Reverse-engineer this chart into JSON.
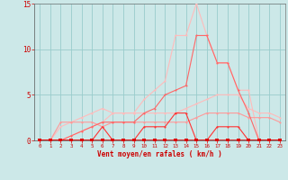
{
  "x": [
    0,
    1,
    2,
    3,
    4,
    5,
    6,
    7,
    8,
    9,
    10,
    11,
    12,
    13,
    14,
    15,
    16,
    17,
    18,
    19,
    20,
    21,
    22,
    23
  ],
  "line_rafales": [
    0,
    0,
    0,
    0.5,
    1.0,
    1.5,
    2.0,
    3.0,
    3.0,
    3.0,
    4.5,
    5.5,
    6.5,
    11.5,
    11.5,
    15.0,
    11.5,
    8.5,
    8.5,
    5.5,
    5.5,
    0,
    0,
    0
  ],
  "line_moyen": [
    0,
    0,
    0,
    0.5,
    1.0,
    1.5,
    2.0,
    2.0,
    2.0,
    2.0,
    3.0,
    3.5,
    5.0,
    5.5,
    6.0,
    11.5,
    11.5,
    8.5,
    8.5,
    5.5,
    3.0,
    0,
    0,
    0
  ],
  "line_ramp": [
    0,
    0,
    1.5,
    2.0,
    2.5,
    3.0,
    3.5,
    3.0,
    3.0,
    3.0,
    3.0,
    3.0,
    3.0,
    3.0,
    3.5,
    4.0,
    4.5,
    5.0,
    5.0,
    5.0,
    3.5,
    3.0,
    3.0,
    2.5
  ],
  "line_lower": [
    0,
    0,
    2.0,
    2.0,
    2.0,
    2.0,
    1.5,
    2.0,
    2.0,
    2.0,
    2.0,
    2.0,
    2.0,
    2.0,
    2.0,
    2.5,
    3.0,
    3.0,
    3.0,
    3.0,
    2.5,
    2.5,
    2.5,
    2.0
  ],
  "line_zero": [
    0,
    0,
    0,
    0,
    0,
    0,
    1.5,
    0,
    0,
    0,
    1.5,
    1.5,
    1.5,
    3.0,
    3.0,
    0,
    0,
    1.5,
    1.5,
    1.5,
    0,
    0,
    0,
    0
  ],
  "line_base": [
    0,
    0,
    0,
    0,
    0,
    0,
    0,
    0,
    0,
    0,
    0,
    0,
    0,
    0,
    0,
    0,
    0,
    0,
    0,
    0,
    0,
    0,
    0,
    0
  ],
  "bg_color": "#cce8e8",
  "grid_color": "#99cccc",
  "col_lightest": "#ffbbbb",
  "col_light": "#ff9999",
  "col_mid": "#ff6666",
  "col_dark": "#ff3333",
  "col_darkest": "#dd0000",
  "xlabel": "Vent moyen/en rafales ( km/h )",
  "xlim": [
    -0.5,
    23.5
  ],
  "ylim": [
    0,
    15
  ],
  "yticks": [
    0,
    5,
    10,
    15
  ],
  "xticks": [
    0,
    1,
    2,
    3,
    4,
    5,
    6,
    7,
    8,
    9,
    10,
    11,
    12,
    13,
    14,
    15,
    16,
    17,
    18,
    19,
    20,
    21,
    22,
    23
  ]
}
